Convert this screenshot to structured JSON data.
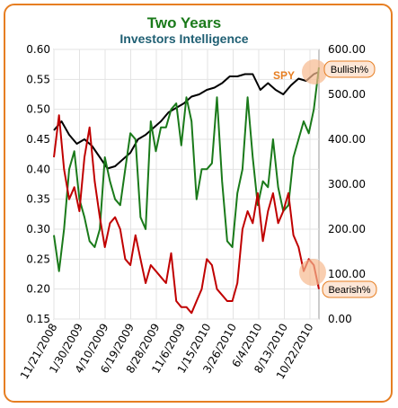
{
  "chart_data": {
    "type": "line",
    "title": "Two Years",
    "subtitle": "Investors Intelligence",
    "title_color": "#1a7a1a",
    "subtitle_color": "#1f5f73",
    "y_left": {
      "min": 0.15,
      "max": 0.6,
      "ticks": [
        "0.60",
        "0.55",
        "0.50",
        "0.45",
        "0.40",
        "0.35",
        "0.30",
        "0.25",
        "0.20",
        "0.15"
      ]
    },
    "y_right": {
      "min": 0,
      "max": 600,
      "ticks": [
        "600.00",
        "500.00",
        "400.00",
        "300.00",
        "200.00",
        "100.00",
        "0.00"
      ]
    },
    "x_ticks": [
      "11/21/2008",
      "1/30/2009",
      "4/10/2009",
      "6/19/2009",
      "8/28/2009",
      "11/6/2009",
      "1/15/2010",
      "3/26/2010",
      "6/4/2010",
      "8/13/2010",
      "10/22/2010"
    ],
    "grid": true,
    "annotations": [
      {
        "text": "SPY",
        "color": "#e67e22"
      },
      {
        "text": "Bullish%",
        "color": "#000000"
      },
      {
        "text": "Bearish%",
        "color": "#000000"
      }
    ],
    "series": [
      {
        "axis": "right",
        "color": "#000000",
        "x": [
          0,
          3,
          6,
          9,
          12,
          15,
          18,
          21,
          24,
          27,
          30,
          33,
          36,
          39,
          42,
          45,
          48,
          51,
          54,
          57,
          60,
          63,
          66,
          69,
          72,
          75,
          78,
          81,
          84,
          87,
          90,
          93,
          96,
          99,
          102,
          104
        ],
        "values": [
          420,
          440,
          410,
          390,
          400,
          385,
          360,
          335,
          340,
          355,
          370,
          400,
          410,
          425,
          440,
          460,
          470,
          480,
          495,
          500,
          510,
          515,
          525,
          540,
          540,
          545,
          545,
          510,
          525,
          510,
          500,
          520,
          535,
          530,
          545,
          550
        ]
      },
      {
        "axis": "left",
        "color": "#1a7a1a",
        "x": [
          0,
          2,
          4,
          6,
          8,
          10,
          12,
          14,
          16,
          18,
          20,
          22,
          24,
          26,
          28,
          30,
          32,
          34,
          36,
          38,
          40,
          42,
          44,
          46,
          48,
          50,
          52,
          54,
          56,
          58,
          60,
          62,
          64,
          66,
          68,
          70,
          72,
          74,
          76,
          78,
          80,
          82,
          84,
          86,
          88,
          90,
          92,
          94,
          96,
          98,
          100,
          102,
          104
        ],
        "values": [
          0.29,
          0.23,
          0.3,
          0.4,
          0.43,
          0.35,
          0.32,
          0.28,
          0.27,
          0.3,
          0.42,
          0.38,
          0.35,
          0.34,
          0.4,
          0.46,
          0.45,
          0.32,
          0.3,
          0.48,
          0.43,
          0.47,
          0.47,
          0.5,
          0.51,
          0.44,
          0.52,
          0.48,
          0.35,
          0.4,
          0.4,
          0.41,
          0.52,
          0.38,
          0.28,
          0.27,
          0.36,
          0.4,
          0.52,
          0.42,
          0.34,
          0.38,
          0.37,
          0.45,
          0.37,
          0.33,
          0.34,
          0.42,
          0.45,
          0.48,
          0.46,
          0.5,
          0.57
        ]
      },
      {
        "axis": "left",
        "color": "#c00000",
        "x": [
          0,
          2,
          4,
          6,
          8,
          10,
          12,
          14,
          16,
          18,
          20,
          22,
          24,
          26,
          28,
          30,
          32,
          34,
          36,
          38,
          40,
          42,
          44,
          46,
          48,
          50,
          52,
          54,
          56,
          58,
          60,
          62,
          64,
          66,
          68,
          70,
          72,
          74,
          76,
          78,
          80,
          82,
          84,
          86,
          88,
          90,
          92,
          94,
          96,
          98,
          100,
          102,
          104
        ],
        "values": [
          0.42,
          0.49,
          0.4,
          0.35,
          0.37,
          0.33,
          0.42,
          0.47,
          0.38,
          0.32,
          0.27,
          0.31,
          0.32,
          0.3,
          0.25,
          0.24,
          0.29,
          0.25,
          0.21,
          0.24,
          0.23,
          0.22,
          0.21,
          0.26,
          0.18,
          0.17,
          0.17,
          0.16,
          0.18,
          0.2,
          0.25,
          0.24,
          0.2,
          0.19,
          0.18,
          0.18,
          0.21,
          0.3,
          0.33,
          0.31,
          0.36,
          0.28,
          0.33,
          0.36,
          0.31,
          0.33,
          0.36,
          0.29,
          0.27,
          0.23,
          0.25,
          0.24,
          0.2
        ]
      }
    ]
  }
}
